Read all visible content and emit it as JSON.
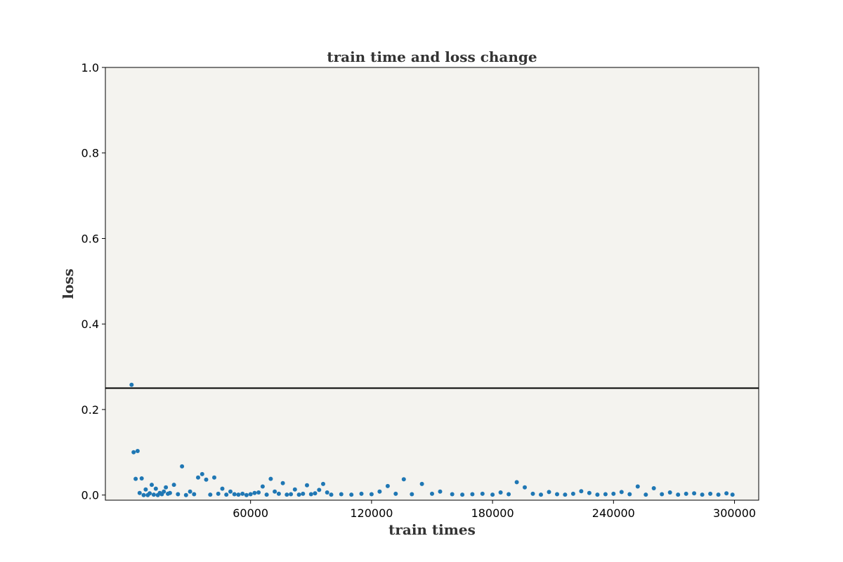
{
  "chart_data": {
    "type": "scatter",
    "title": "train time and loss change",
    "xlabel": "train times",
    "ylabel": "loss",
    "xlim": [
      -12000,
      312000
    ],
    "ylim": [
      -0.012,
      1.0
    ],
    "xticks": [
      60000,
      120000,
      180000,
      240000,
      300000
    ],
    "xtick_labels": [
      "60000",
      "120000",
      "180000",
      "240000",
      "300000"
    ],
    "yticks": [
      0.0,
      0.2,
      0.4,
      0.6,
      0.8,
      1.0
    ],
    "ytick_labels": [
      "0.0",
      "0.2",
      "0.4",
      "0.6",
      "0.8",
      "1.0"
    ],
    "hline": 0.25,
    "grid": false,
    "colors": {
      "background": "#f4f3ef",
      "points": "#1f77b4",
      "hline": "#000000",
      "spine": "#000000"
    },
    "series": [
      {
        "x": [
          1000,
          2000,
          3000,
          4000,
          5000,
          6000,
          7000,
          8000,
          9000,
          10000,
          11000,
          12000,
          13000,
          14000,
          15000,
          16000,
          17000,
          18000,
          19000,
          20000,
          22000,
          24000,
          26000,
          28000,
          30000,
          32000,
          34000,
          36000,
          38000,
          40000,
          42000,
          44000,
          46000,
          48000,
          50000,
          52000,
          54000,
          56000,
          58000,
          60000,
          62000,
          64000,
          66000,
          68000,
          70000,
          72000,
          74000,
          76000,
          78000,
          80000,
          82000,
          84000,
          86000,
          88000,
          90000,
          92000,
          94000,
          96000,
          98000,
          100000,
          105000,
          110000,
          115000,
          120000,
          124000,
          128000,
          132000,
          136000,
          140000,
          145000,
          150000,
          154000,
          160000,
          165000,
          170000,
          175000,
          180000,
          184000,
          188000,
          192000,
          196000,
          200000,
          204000,
          208000,
          212000,
          216000,
          220000,
          224000,
          228000,
          232000,
          236000,
          240000,
          244000,
          248000,
          252000,
          256000,
          260000,
          264000,
          268000,
          272000,
          276000,
          280000,
          284000,
          288000,
          292000,
          296000,
          299000
        ],
        "y": [
          0.258,
          0.1,
          0.038,
          0.103,
          0.005,
          0.039,
          0.0,
          0.013,
          0.0,
          0.004,
          0.024,
          0.001,
          0.015,
          0.0,
          0.005,
          0.002,
          0.008,
          0.018,
          0.003,
          0.005,
          0.024,
          0.002,
          0.067,
          0.0,
          0.008,
          0.002,
          0.041,
          0.049,
          0.036,
          0.001,
          0.041,
          0.003,
          0.015,
          0.001,
          0.008,
          0.002,
          0.001,
          0.003,
          0.0,
          0.002,
          0.005,
          0.006,
          0.02,
          0.001,
          0.038,
          0.008,
          0.003,
          0.028,
          0.001,
          0.002,
          0.013,
          0.001,
          0.003,
          0.023,
          0.002,
          0.004,
          0.012,
          0.026,
          0.006,
          0.001,
          0.002,
          0.001,
          0.003,
          0.002,
          0.008,
          0.021,
          0.003,
          0.037,
          0.002,
          0.026,
          0.003,
          0.008,
          0.002,
          0.001,
          0.002,
          0.003,
          0.001,
          0.006,
          0.002,
          0.03,
          0.018,
          0.003,
          0.001,
          0.007,
          0.002,
          0.001,
          0.003,
          0.009,
          0.005,
          0.001,
          0.002,
          0.003,
          0.007,
          0.002,
          0.02,
          0.001,
          0.016,
          0.002,
          0.006,
          0.001,
          0.003,
          0.004,
          0.001,
          0.003,
          0.001,
          0.004,
          0.001
        ]
      }
    ]
  }
}
